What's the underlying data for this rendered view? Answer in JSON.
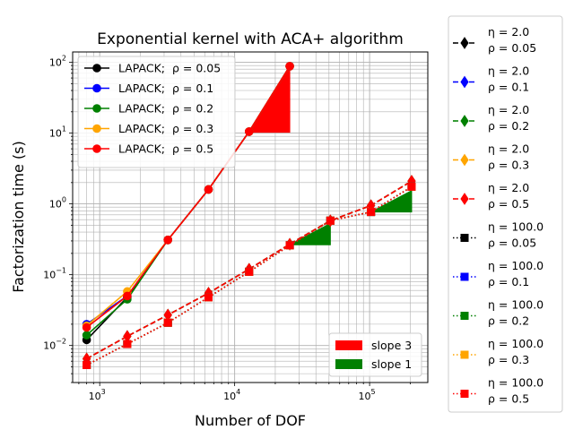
{
  "chart_data": {
    "type": "line",
    "title": "Exponential kernel with ACA+ algorithm",
    "xlabel": "Number of DOF",
    "ylabel": "Factorization time (s)",
    "xscale": "log",
    "yscale": "log",
    "xlim": [
      630,
      270000
    ],
    "ylim": [
      0.003,
      140
    ],
    "grid": "major and minor",
    "x_tick_labels": [
      {
        "value": 1000,
        "base": "10",
        "exp": "3"
      },
      {
        "value": 10000,
        "base": "10",
        "exp": "4"
      },
      {
        "value": 100000,
        "base": "10",
        "exp": "5"
      }
    ],
    "y_tick_labels": [
      {
        "value": 0.01,
        "base": "10",
        "exp": "−2"
      },
      {
        "value": 0.1,
        "base": "10",
        "exp": "−1"
      },
      {
        "value": 1,
        "base": "10",
        "exp": "0"
      },
      {
        "value": 10,
        "base": "10",
        "exp": "1"
      },
      {
        "value": 100,
        "base": "10",
        "exp": "2"
      }
    ],
    "lapack_series": [
      {
        "label": "LAPACK; ",
        "rho_label": "ρ =  0.05",
        "color": "#000000",
        "x": [
          800,
          1600,
          3200,
          6400,
          12800,
          25600
        ],
        "values": [
          0.012,
          0.048,
          0.31,
          1.6,
          10.5,
          88
        ]
      },
      {
        "label": "LAPACK; ",
        "rho_label": "ρ =  0.1",
        "color": "#0000ff",
        "x": [
          800,
          1600,
          3200,
          6400,
          12800,
          25600
        ],
        "values": [
          0.02,
          0.05,
          0.31,
          1.6,
          10.5,
          88
        ]
      },
      {
        "label": "LAPACK; ",
        "rho_label": "ρ =  0.2",
        "color": "#008000",
        "x": [
          800,
          1600,
          3200,
          6400,
          12800,
          25600
        ],
        "values": [
          0.014,
          0.045,
          0.31,
          1.6,
          10.5,
          88
        ]
      },
      {
        "label": "LAPACK; ",
        "rho_label": "ρ =  0.3",
        "color": "#ffa500",
        "x": [
          800,
          1600,
          3200,
          6400,
          12800,
          25600
        ],
        "values": [
          0.019,
          0.058,
          0.31,
          1.6,
          10.5,
          88
        ]
      },
      {
        "label": "LAPACK; ",
        "rho_label": "ρ =  0.5",
        "color": "#ff0000",
        "x": [
          800,
          1600,
          3200,
          6400,
          12800,
          25600
        ],
        "values": [
          0.018,
          0.05,
          0.31,
          1.6,
          10.5,
          88
        ]
      }
    ],
    "hmatrix_series": [
      {
        "eta_label": "η = 2.0",
        "rho_label": "ρ =  0.05",
        "color": "#000000",
        "marker": "diamond",
        "linestyle": "dashed",
        "x": [
          800,
          1600,
          3200,
          6400,
          12800,
          25600,
          51200,
          102400,
          204800
        ],
        "values": [
          0.0065,
          0.0135,
          0.027,
          0.055,
          0.12,
          0.27,
          0.58,
          0.95,
          2.1
        ]
      },
      {
        "eta_label": "η = 2.0",
        "rho_label": "ρ =  0.1",
        "color": "#0000ff",
        "marker": "diamond",
        "linestyle": "dashed",
        "x": [
          800,
          1600,
          3200,
          6400,
          12800,
          25600,
          51200,
          102400,
          204800
        ],
        "values": [
          0.0065,
          0.0135,
          0.027,
          0.055,
          0.12,
          0.27,
          0.58,
          0.95,
          2.1
        ]
      },
      {
        "eta_label": "η = 2.0",
        "rho_label": "ρ =  0.2",
        "color": "#008000",
        "marker": "diamond",
        "linestyle": "dashed",
        "x": [
          800,
          1600,
          3200,
          6400,
          12800,
          25600,
          51200,
          102400,
          204800
        ],
        "values": [
          0.0065,
          0.0135,
          0.027,
          0.055,
          0.12,
          0.27,
          0.58,
          0.95,
          2.1
        ]
      },
      {
        "eta_label": "η = 2.0",
        "rho_label": "ρ =  0.3",
        "color": "#ffa500",
        "marker": "diamond",
        "linestyle": "dashed",
        "x": [
          800,
          1600,
          3200,
          6400,
          12800,
          25600,
          51200,
          102400,
          204800
        ],
        "values": [
          0.0065,
          0.0135,
          0.027,
          0.055,
          0.12,
          0.27,
          0.58,
          0.95,
          2.1
        ]
      },
      {
        "eta_label": "η = 2.0",
        "rho_label": "ρ =  0.5",
        "color": "#ff0000",
        "marker": "diamond",
        "linestyle": "dashed",
        "x": [
          800,
          1600,
          3200,
          6400,
          12800,
          25600,
          51200,
          102400,
          204800
        ],
        "values": [
          0.0065,
          0.0135,
          0.027,
          0.055,
          0.12,
          0.27,
          0.58,
          0.95,
          2.1
        ]
      },
      {
        "eta_label": "η = 100.0",
        "rho_label": "ρ =  0.05",
        "color": "#000000",
        "marker": "square",
        "linestyle": "dotted",
        "x": [
          800,
          1600,
          3200,
          6400,
          12800,
          25600,
          51200,
          102400,
          204800
        ],
        "values": [
          0.0053,
          0.0105,
          0.021,
          0.048,
          0.11,
          0.26,
          0.58,
          0.77,
          1.75
        ]
      },
      {
        "eta_label": "η = 100.0",
        "rho_label": "ρ =  0.1",
        "color": "#0000ff",
        "marker": "square",
        "linestyle": "dotted",
        "x": [
          800,
          1600,
          3200,
          6400,
          12800,
          25600,
          51200,
          102400,
          204800
        ],
        "values": [
          0.0053,
          0.0105,
          0.021,
          0.048,
          0.11,
          0.26,
          0.58,
          0.77,
          1.75
        ]
      },
      {
        "eta_label": "η = 100.0",
        "rho_label": "ρ =  0.2",
        "color": "#008000",
        "marker": "square",
        "linestyle": "dotted",
        "x": [
          800,
          1600,
          3200,
          6400,
          12800,
          25600,
          51200,
          102400,
          204800
        ],
        "values": [
          0.0053,
          0.0105,
          0.021,
          0.048,
          0.11,
          0.26,
          0.58,
          0.77,
          1.75
        ]
      },
      {
        "eta_label": "η = 100.0",
        "rho_label": "ρ =  0.3",
        "color": "#ffa500",
        "marker": "square",
        "linestyle": "dotted",
        "x": [
          800,
          1600,
          3200,
          6400,
          12800,
          25600,
          51200,
          102400,
          204800
        ],
        "values": [
          0.0053,
          0.0105,
          0.021,
          0.048,
          0.11,
          0.26,
          0.58,
          0.77,
          1.75
        ]
      },
      {
        "eta_label": "η = 100.0",
        "rho_label": "ρ =  0.5",
        "color": "#ff0000",
        "marker": "square",
        "linestyle": "dotted",
        "x": [
          800,
          1600,
          3200,
          6400,
          12800,
          25600,
          51200,
          102400,
          204800
        ],
        "values": [
          0.0053,
          0.0105,
          0.021,
          0.048,
          0.11,
          0.26,
          0.58,
          0.77,
          1.75
        ]
      }
    ],
    "slope_triangles": [
      {
        "label": "slope 3",
        "color": "#ff0000",
        "x_start": 12800,
        "x_end": 25600,
        "y_base": 10.3,
        "slope": 3
      },
      {
        "label": "slope 1",
        "color": "#008000",
        "x_start": 25600,
        "x_end": 51200,
        "y_base": 0.265,
        "slope": 1
      },
      {
        "label": "slope 1",
        "color": "#008000",
        "x_start": 102400,
        "x_end": 204800,
        "y_base": 0.77,
        "slope": 1
      }
    ],
    "slope_legend": [
      {
        "label": "slope 3",
        "color": "#ff0000"
      },
      {
        "label": "slope 1",
        "color": "#008000"
      }
    ],
    "legends": {
      "lapack_position": "upper-left",
      "slope_position": "lower-right",
      "hmatrix_position": "outside-right"
    }
  }
}
